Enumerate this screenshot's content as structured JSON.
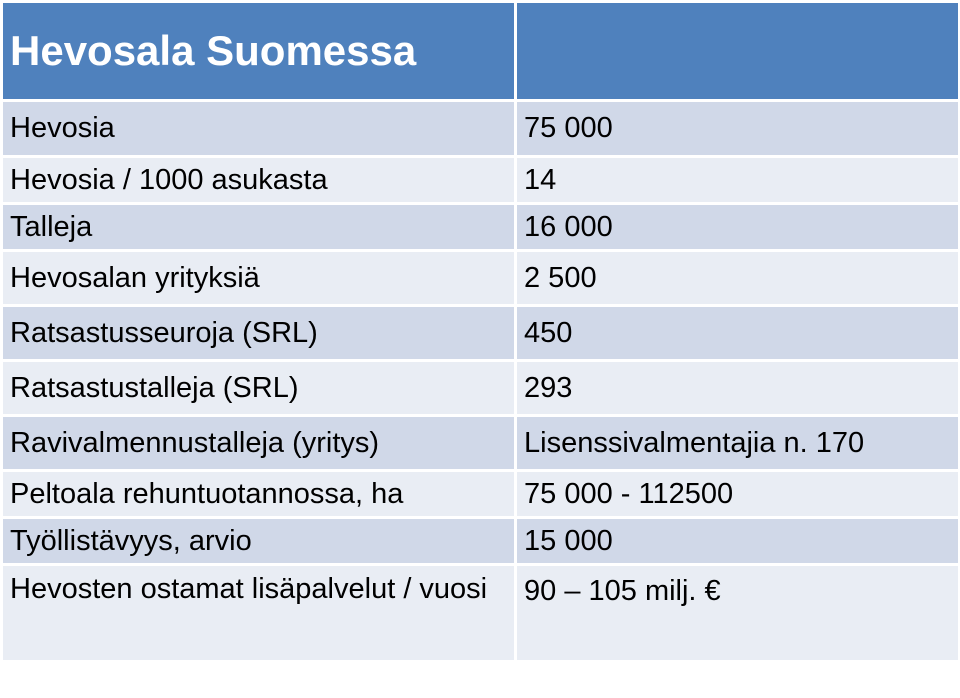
{
  "title": "Hevosala Suomessa",
  "rows": [
    {
      "label": "Hevosia",
      "value": "75 000"
    },
    {
      "label": "Hevosia / 1000 asukasta",
      "value": "14"
    },
    {
      "label": "Talleja",
      "value": "16 000"
    },
    {
      "label": "Hevosalan yrityksiä",
      "value": "2 500"
    },
    {
      "label": "Ratsastusseuroja (SRL)",
      "value": "450"
    },
    {
      "label": "Ratsastustalleja (SRL)",
      "value": "293"
    },
    {
      "label": "Ravivalmennustalleja (yritys)",
      "value": "Lisenssivalmentajia n. 170"
    },
    {
      "label": "Peltoala rehuntuotannossa, ha",
      "value": "75 000 - 112500"
    },
    {
      "label": "Työllistävyys, arvio",
      "value": "15 000"
    },
    {
      "label": "Hevosten ostamat lisäpalvelut / vuosi",
      "value": "90 – 105 milj. €"
    }
  ],
  "colors": {
    "header": "#4f81bd",
    "row_dark": "#d0d8e8",
    "row_light": "#e9edf4"
  }
}
